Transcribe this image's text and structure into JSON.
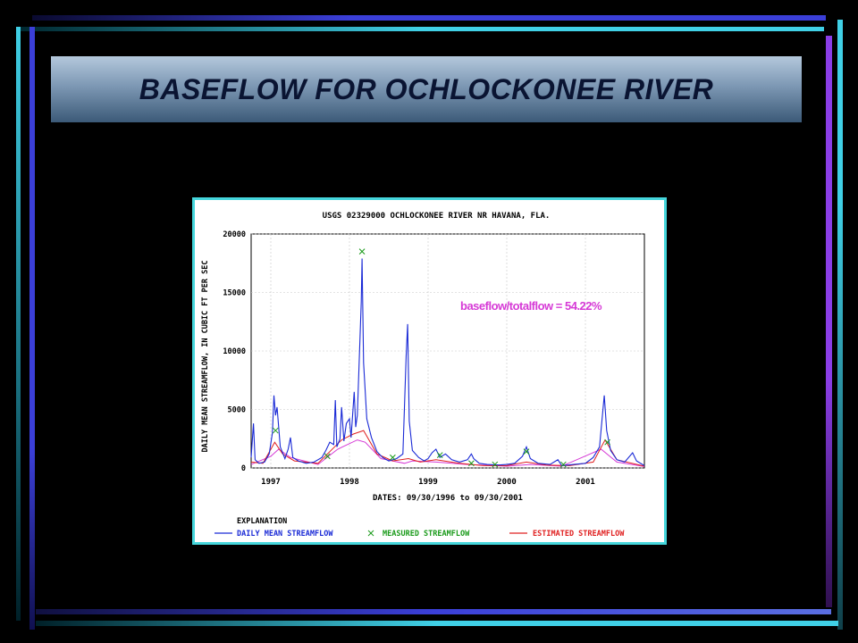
{
  "slide": {
    "title": "BASEFLOW FOR OCHLOCKONEE RIVER",
    "colors": {
      "background": "#000000",
      "frame_blue": "#3b3fd8",
      "frame_purple": "#8a3ee6",
      "frame_cyan": "#40d0e6",
      "title_text": "#0a1432"
    }
  },
  "chart_data": {
    "type": "line",
    "title": "USGS 02329000 OCHLOCKONEE RIVER NR HAVANA, FLA.",
    "xlabel": "DATES: 09/30/1996 to 09/30/2001",
    "ylabel": "DAILY MEAN STREAMFLOW, IN CUBIC FT PER SEC",
    "ylim": [
      0,
      20000
    ],
    "xlim": [
      1996.75,
      2001.75
    ],
    "x_ticks": [
      "1997",
      "1998",
      "1999",
      "2000",
      "2001"
    ],
    "y_ticks": [
      "0",
      "5000",
      "10000",
      "15000",
      "20000"
    ],
    "annotation": "baseflow/totalflow = 54.22%",
    "annotation_color": "#d63ad6",
    "grid": true,
    "legend_title": "EXPLANATION",
    "legend_position": "bottom",
    "series": [
      {
        "name": "DAILY MEAN STREAMFLOW",
        "color": "#1a2ad6",
        "points": [
          [
            1996.75,
            900
          ],
          [
            1996.78,
            3800
          ],
          [
            1996.8,
            700
          ],
          [
            1996.85,
            400
          ],
          [
            1996.92,
            500
          ],
          [
            1996.98,
            1200
          ],
          [
            1997.02,
            3000
          ],
          [
            1997.04,
            6200
          ],
          [
            1997.06,
            4500
          ],
          [
            1997.08,
            5200
          ],
          [
            1997.12,
            1800
          ],
          [
            1997.18,
            800
          ],
          [
            1997.22,
            1600
          ],
          [
            1997.25,
            2600
          ],
          [
            1997.28,
            900
          ],
          [
            1997.35,
            600
          ],
          [
            1997.45,
            400
          ],
          [
            1997.55,
            500
          ],
          [
            1997.65,
            900
          ],
          [
            1997.7,
            1500
          ],
          [
            1997.75,
            2200
          ],
          [
            1997.8,
            2000
          ],
          [
            1997.82,
            5800
          ],
          [
            1997.84,
            1800
          ],
          [
            1997.88,
            2500
          ],
          [
            1997.9,
            5200
          ],
          [
            1997.93,
            2300
          ],
          [
            1997.96,
            3800
          ],
          [
            1998.0,
            4200
          ],
          [
            1998.02,
            2600
          ],
          [
            1998.06,
            6500
          ],
          [
            1998.08,
            3500
          ],
          [
            1998.1,
            4500
          ],
          [
            1998.15,
            14200
          ],
          [
            1998.16,
            17900
          ],
          [
            1998.18,
            9000
          ],
          [
            1998.22,
            4200
          ],
          [
            1998.28,
            2600
          ],
          [
            1998.35,
            1400
          ],
          [
            1998.42,
            900
          ],
          [
            1998.5,
            600
          ],
          [
            1998.6,
            800
          ],
          [
            1998.68,
            1200
          ],
          [
            1998.72,
            9500
          ],
          [
            1998.74,
            12300
          ],
          [
            1998.76,
            4000
          ],
          [
            1998.8,
            1500
          ],
          [
            1998.88,
            900
          ],
          [
            1998.95,
            600
          ],
          [
            1999.0,
            800
          ],
          [
            1999.05,
            1300
          ],
          [
            1999.1,
            1600
          ],
          [
            1999.15,
            900
          ],
          [
            1999.22,
            1200
          ],
          [
            1999.3,
            700
          ],
          [
            1999.4,
            500
          ],
          [
            1999.5,
            700
          ],
          [
            1999.55,
            1200
          ],
          [
            1999.58,
            800
          ],
          [
            1999.65,
            400
          ],
          [
            1999.75,
            300
          ],
          [
            1999.9,
            250
          ],
          [
            2000.0,
            300
          ],
          [
            2000.1,
            400
          ],
          [
            2000.2,
            1000
          ],
          [
            2000.25,
            1800
          ],
          [
            2000.3,
            800
          ],
          [
            2000.4,
            400
          ],
          [
            2000.55,
            300
          ],
          [
            2000.65,
            700
          ],
          [
            2000.7,
            200
          ],
          [
            2000.85,
            300
          ],
          [
            2001.0,
            400
          ],
          [
            2001.1,
            900
          ],
          [
            2001.18,
            1800
          ],
          [
            2001.22,
            4800
          ],
          [
            2001.24,
            6200
          ],
          [
            2001.27,
            3200
          ],
          [
            2001.32,
            1500
          ],
          [
            2001.4,
            700
          ],
          [
            2001.5,
            500
          ],
          [
            2001.6,
            1300
          ],
          [
            2001.65,
            600
          ],
          [
            2001.75,
            200
          ]
        ]
      },
      {
        "name": "MEASURED STREAMFLOW",
        "color": "#1a9a1a",
        "points": [
          [
            1997.06,
            3200
          ],
          [
            1997.72,
            1000
          ],
          [
            1998.16,
            18500
          ],
          [
            1998.55,
            900
          ],
          [
            1999.15,
            1100
          ],
          [
            1999.55,
            400
          ],
          [
            1999.85,
            300
          ],
          [
            2000.25,
            1400
          ],
          [
            2000.72,
            300
          ],
          [
            2001.28,
            2200
          ]
        ]
      },
      {
        "name": "ESTIMATED STREAMFLOW",
        "color": "#e02020",
        "points": [
          [
            1996.75,
            500
          ],
          [
            1996.9,
            400
          ],
          [
            1997.05,
            2200
          ],
          [
            1997.15,
            1200
          ],
          [
            1997.3,
            600
          ],
          [
            1997.6,
            400
          ],
          [
            1997.75,
            1400
          ],
          [
            1997.9,
            2400
          ],
          [
            1998.05,
            2900
          ],
          [
            1998.18,
            3200
          ],
          [
            1998.35,
            1200
          ],
          [
            1998.55,
            600
          ],
          [
            1998.75,
            800
          ],
          [
            1998.9,
            500
          ],
          [
            1999.1,
            700
          ],
          [
            1999.4,
            400
          ],
          [
            1999.7,
            200
          ],
          [
            2000.0,
            200
          ],
          [
            2000.25,
            500
          ],
          [
            2000.5,
            250
          ],
          [
            2000.8,
            200
          ],
          [
            2001.1,
            500
          ],
          [
            2001.25,
            2400
          ],
          [
            2001.4,
            700
          ],
          [
            2001.75,
            150
          ]
        ]
      },
      {
        "name": "",
        "color": "#d63ad6",
        "points": [
          [
            1996.75,
            300
          ],
          [
            1997.0,
            1000
          ],
          [
            1997.1,
            1600
          ],
          [
            1997.25,
            900
          ],
          [
            1997.6,
            300
          ],
          [
            1997.85,
            1600
          ],
          [
            1998.1,
            2400
          ],
          [
            1998.2,
            2200
          ],
          [
            1998.4,
            800
          ],
          [
            1998.7,
            400
          ],
          [
            1998.8,
            600
          ],
          [
            1999.1,
            500
          ],
          [
            1999.5,
            300
          ],
          [
            2000.0,
            150
          ],
          [
            2000.3,
            300
          ],
          [
            2000.7,
            150
          ],
          [
            2001.2,
            1600
          ],
          [
            2001.4,
            500
          ],
          [
            2001.75,
            120
          ]
        ]
      }
    ]
  }
}
